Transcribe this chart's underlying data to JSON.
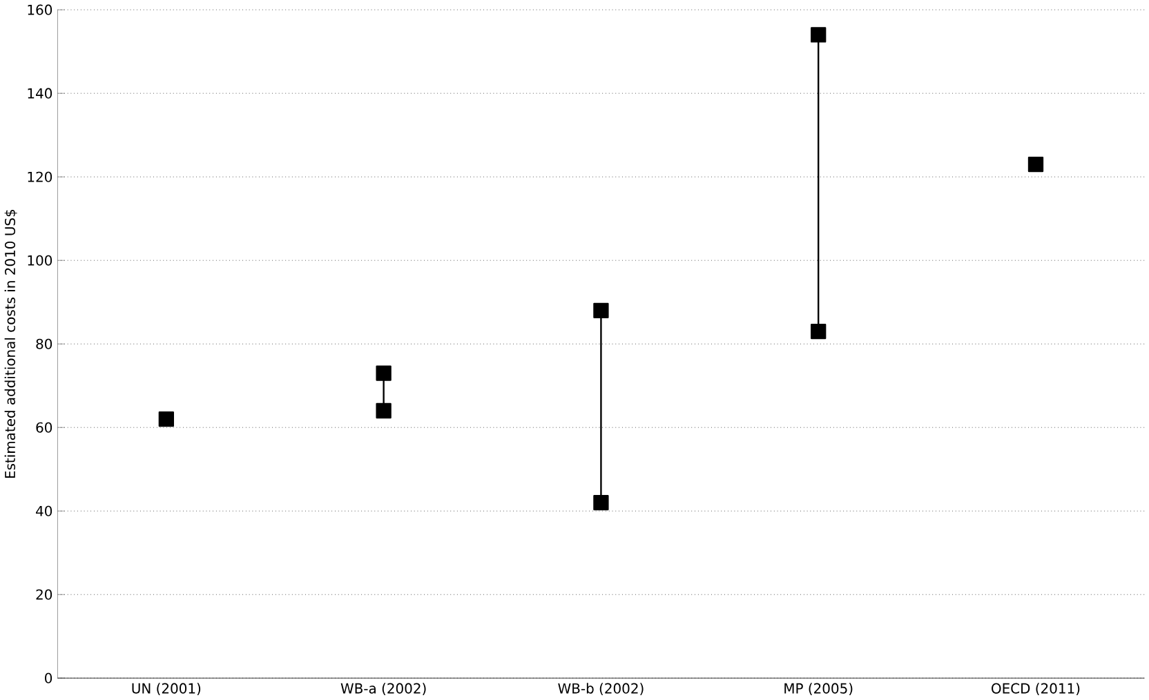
{
  "chart_data": {
    "type": "line",
    "ylabel": "Estimated additional costs in 2010 US$",
    "categories": [
      "UN (2001)",
      "WB-a (2002)",
      "WB-b (2002)",
      "MP (2005)",
      "OECD (2011)"
    ],
    "series": [
      {
        "color": "#000000",
        "x": [
          "UN (2001)"
        ],
        "values": [
          62
        ]
      },
      {
        "color": "#000000",
        "x": [
          "WB-a (2002)",
          "WB-a (2002)"
        ],
        "values": [
          64,
          73
        ]
      },
      {
        "color": "#000000",
        "x": [
          "WB-b (2002)",
          "WB-b (2002)"
        ],
        "values": [
          42,
          88
        ]
      },
      {
        "color": "#000000",
        "x": [
          "MP (2005)",
          "MP (2005)"
        ],
        "values": [
          83,
          154
        ]
      },
      {
        "color": "#000000",
        "x": [
          "OECD (2011)"
        ],
        "values": [
          123
        ]
      }
    ],
    "ylim": [
      0,
      160
    ],
    "yticks": [
      0,
      20,
      40,
      60,
      80,
      100,
      120,
      140,
      160
    ],
    "grid": "y",
    "marker": "square"
  }
}
